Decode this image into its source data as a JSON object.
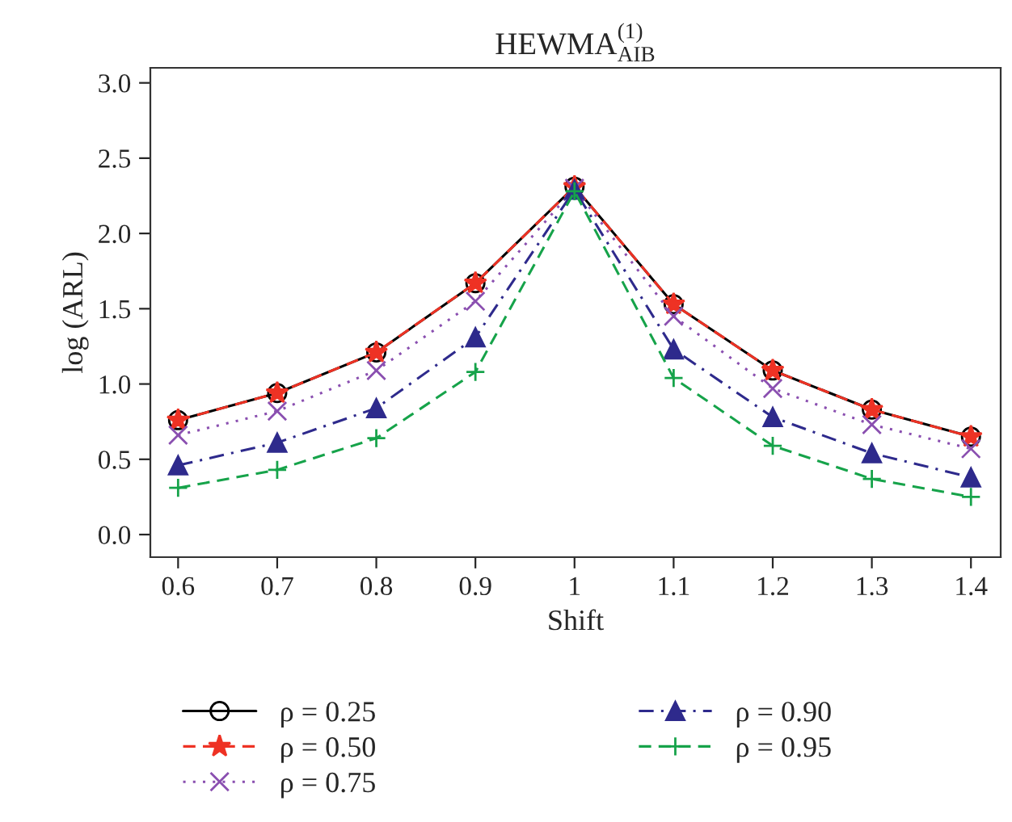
{
  "chart_data": {
    "type": "line",
    "title": "HEWMA$^{(1)}$$_{AIB}$",
    "xlabel": "Shift",
    "ylabel": "log (ARL)",
    "x": [
      0.6,
      0.7,
      0.8,
      0.9,
      1,
      1.1,
      1.2,
      1.3,
      1.4
    ],
    "series": [
      {
        "name": "ρ = 0.25",
        "color": "#000000",
        "marker": "circle",
        "line_style": "solid",
        "values": [
          0.76,
          0.94,
          1.21,
          1.67,
          2.31,
          1.53,
          1.09,
          0.83,
          0.65
        ]
      },
      {
        "name": "ρ = 0.50",
        "color": "#ee3224",
        "marker": "star",
        "line_style": "dashed",
        "values": [
          0.76,
          0.94,
          1.21,
          1.67,
          2.31,
          1.53,
          1.09,
          0.83,
          0.65
        ]
      },
      {
        "name": "ρ = 0.75",
        "color": "#8a4fb0",
        "marker": "cross",
        "line_style": "dotted",
        "values": [
          0.66,
          0.82,
          1.09,
          1.55,
          2.3,
          1.45,
          0.97,
          0.73,
          0.57
        ]
      },
      {
        "name": "ρ = 0.90",
        "color": "#2e2a8c",
        "marker": "triangle",
        "line_style": "dashdot",
        "values": [
          0.46,
          0.61,
          0.84,
          1.31,
          2.29,
          1.23,
          0.78,
          0.54,
          0.38
        ]
      },
      {
        "name": "ρ = 0.95",
        "color": "#16a34a",
        "marker": "plus",
        "line_style": "dashed",
        "values": [
          0.31,
          0.43,
          0.64,
          1.08,
          2.28,
          1.04,
          0.59,
          0.37,
          0.25
        ]
      }
    ],
    "xlim": [
      0.572,
      1.43
    ],
    "ylim": [
      -0.15,
      3.1
    ],
    "xticks": [
      0.6,
      0.7,
      0.8,
      0.9,
      1,
      1.1,
      1.2,
      1.3,
      1.4
    ],
    "yticks": [
      {
        "value": 0,
        "label": "0.0"
      },
      0.5,
      {
        "value": 1,
        "label": "1.0"
      },
      1.5,
      {
        "value": 2,
        "label": "2.0"
      },
      2.5,
      {
        "value": 3,
        "label": "3.0"
      }
    ],
    "grid": false,
    "legend": "bottom"
  }
}
